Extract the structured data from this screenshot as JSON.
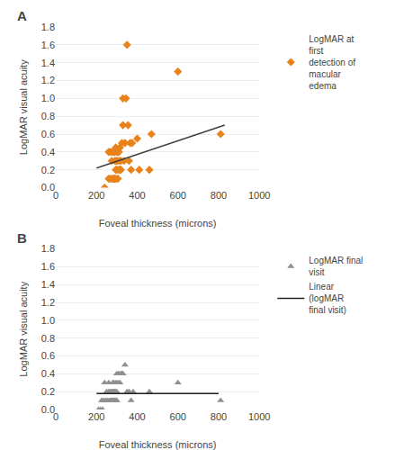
{
  "chart_data": [
    {
      "type": "scatter",
      "title": "A",
      "xlabel": "Foveal thickness (microns)",
      "ylabel": "LogMAR visual acuity",
      "xlim": [
        0,
        1000
      ],
      "ylim": [
        0,
        1.8
      ],
      "xticks": [
        0,
        200,
        400,
        600,
        800,
        1000
      ],
      "yticks": [
        {
          "value": 0,
          "label": "0.0"
        },
        0.2,
        0.4,
        0.6,
        0.8,
        {
          "value": 1,
          "label": "1.0"
        },
        1.2,
        1.4,
        1.6,
        1.8
      ],
      "grid": "y",
      "legend": "right",
      "series": [
        {
          "name": "LogMAR at\nfirst\ndetection of\nmacular\nedema",
          "type": "scatter",
          "color": "#E8821A",
          "marker": "diamond",
          "x": [
            240,
            260,
            260,
            270,
            270,
            275,
            280,
            280,
            285,
            285,
            285,
            290,
            290,
            290,
            295,
            295,
            295,
            295,
            300,
            300,
            300,
            305,
            305,
            305,
            310,
            310,
            315,
            315,
            315,
            320,
            320,
            325,
            330,
            330,
            335,
            340,
            345,
            350,
            355,
            360,
            365,
            370,
            375,
            400,
            410,
            460,
            470,
            600,
            810
          ],
          "values": [
            0.0,
            0.1,
            0.4,
            0.1,
            0.4,
            0.3,
            0.1,
            0.4,
            0.1,
            0.1,
            0.4,
            0.1,
            0.3,
            0.4,
            0.1,
            0.2,
            0.3,
            0.45,
            0.2,
            0.3,
            0.4,
            0.1,
            0.3,
            0.4,
            0.2,
            0.4,
            0.2,
            0.3,
            0.45,
            0.2,
            0.3,
            0.5,
            0.7,
            1.0,
            0.3,
            0.5,
            1.0,
            1.6,
            0.7,
            0.3,
            0.5,
            0.2,
            0.5,
            0.55,
            0.2,
            0.2,
            0.6,
            1.3,
            0.6
          ]
        },
        {
          "type": "line",
          "color": "#404040",
          "x": [
            200,
            830
          ],
          "values": [
            0.22,
            0.7
          ]
        }
      ]
    },
    {
      "type": "scatter",
      "title": "B",
      "xlabel": "Foveal thickness (microns)",
      "ylabel": "LogMAR visual acuity",
      "xlim": [
        0,
        1000
      ],
      "ylim": [
        0,
        1.8
      ],
      "xticks": [
        0,
        200,
        400,
        600,
        800,
        1000
      ],
      "yticks": [
        {
          "value": 0,
          "label": "0.0"
        },
        0.2,
        0.4,
        0.6,
        0.8,
        {
          "value": 1,
          "label": "1.0"
        },
        1.2,
        1.4,
        1.6,
        1.8
      ],
      "grid": "y",
      "legend": "right",
      "series": [
        {
          "name": "LogMAR final\nvisit",
          "type": "scatter",
          "color": "#909090",
          "marker": "triangle",
          "x": [
            210,
            220,
            225,
            230,
            235,
            240,
            245,
            250,
            255,
            260,
            260,
            265,
            265,
            270,
            270,
            275,
            275,
            280,
            280,
            280,
            285,
            285,
            285,
            290,
            290,
            295,
            295,
            295,
            300,
            300,
            300,
            305,
            310,
            315,
            320,
            325,
            330,
            340,
            350,
            360,
            370,
            380,
            460,
            600,
            810
          ],
          "values": [
            0.0,
            0.0,
            0.1,
            0.0,
            0.1,
            0.3,
            0.1,
            0.2,
            0.1,
            0.2,
            0.3,
            0.1,
            0.2,
            0.1,
            0.2,
            0.1,
            0.2,
            0.1,
            0.2,
            0.3,
            0.1,
            0.2,
            0.3,
            0.1,
            0.2,
            0.1,
            0.2,
            0.3,
            0.1,
            0.2,
            0.4,
            0.3,
            0.4,
            0.3,
            0.4,
            0.4,
            0.4,
            0.5,
            0.2,
            0.2,
            0.1,
            0.2,
            0.2,
            0.3,
            0.1
          ]
        },
        {
          "name": "Linear\n(logMAR\nfinal visit)",
          "type": "line",
          "color": "#202020",
          "x": [
            200,
            800
          ],
          "values": [
            0.18,
            0.18
          ]
        }
      ]
    }
  ]
}
